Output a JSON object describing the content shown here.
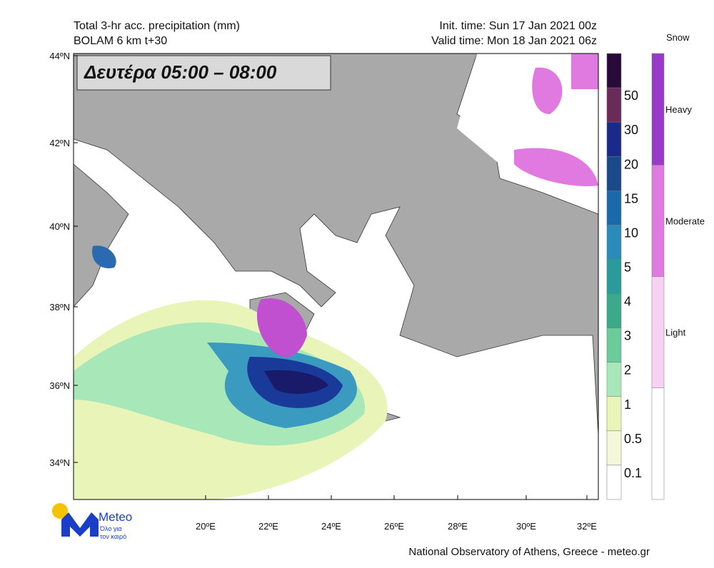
{
  "header": {
    "title_line1": "Total 3-hr acc. precipitation (mm)",
    "title_line2": "BOLAM 6 km t+30",
    "init_time": "Init. time: Sun 17 Jan 2021 00z",
    "valid_time": "Valid time: Mon 18 Jan 2021 06z"
  },
  "overlay_label": "Δευτέρα 05:00 – 08:00",
  "axes": {
    "lat_labels": [
      "44ºN",
      "42ºN",
      "40ºN",
      "38ºN",
      "36ºN",
      "34ºN"
    ],
    "lon_labels": [
      "20ºE",
      "22ºE",
      "24ºE",
      "26ºE",
      "28ºE",
      "30ºE",
      "32ºE"
    ]
  },
  "legend": {
    "precip_labels": [
      "50",
      "30",
      "20",
      "15",
      "10",
      "5",
      "4",
      "3",
      "2",
      "1",
      "0.5",
      "0.1"
    ],
    "snow_title": "Snow",
    "snow_labels": [
      "Heavy",
      "Moderate",
      "Light"
    ]
  },
  "logo": {
    "name": "Meteo",
    "tagline_line1": "Όλο για",
    "tagline_line2": "τον καιρό"
  },
  "footer": "National Observatory of Athens, Greece - meteo.gr"
}
